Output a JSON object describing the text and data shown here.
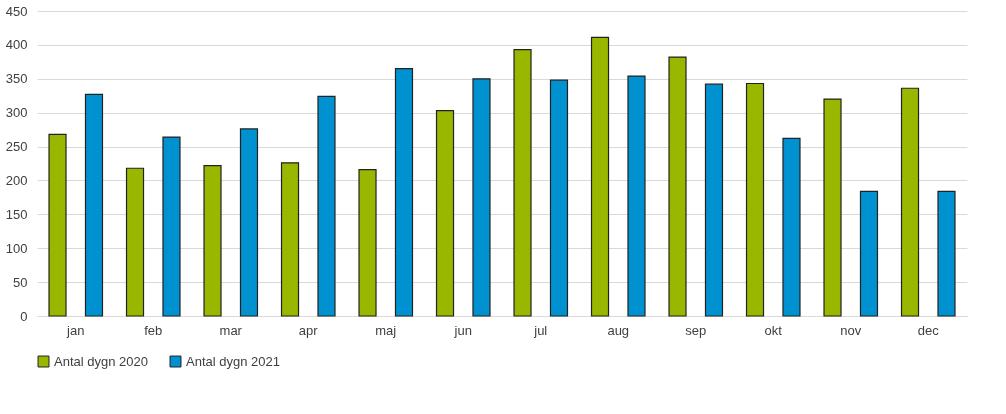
{
  "chart_data": {
    "type": "bar",
    "categories": [
      "jan",
      "feb",
      "mar",
      "apr",
      "maj",
      "jun",
      "jul",
      "aug",
      "sep",
      "okt",
      "nov",
      "dec"
    ],
    "series": [
      {
        "name": "Antal dygn 2020",
        "color": "#9ab700",
        "values": [
          268,
          218,
          222,
          226,
          216,
          303,
          393,
          411,
          382,
          343,
          320,
          336
        ]
      },
      {
        "name": "Antal dygn 2021",
        "color": "#0091d0",
        "values": [
          327,
          264,
          276,
          324,
          365,
          350,
          348,
          354,
          342,
          262,
          184,
          184
        ]
      }
    ],
    "ylim": [
      0,
      450
    ],
    "yticks": [
      0,
      50,
      100,
      150,
      200,
      250,
      300,
      350,
      400,
      450
    ],
    "grid": "y",
    "legend": "bottom"
  }
}
